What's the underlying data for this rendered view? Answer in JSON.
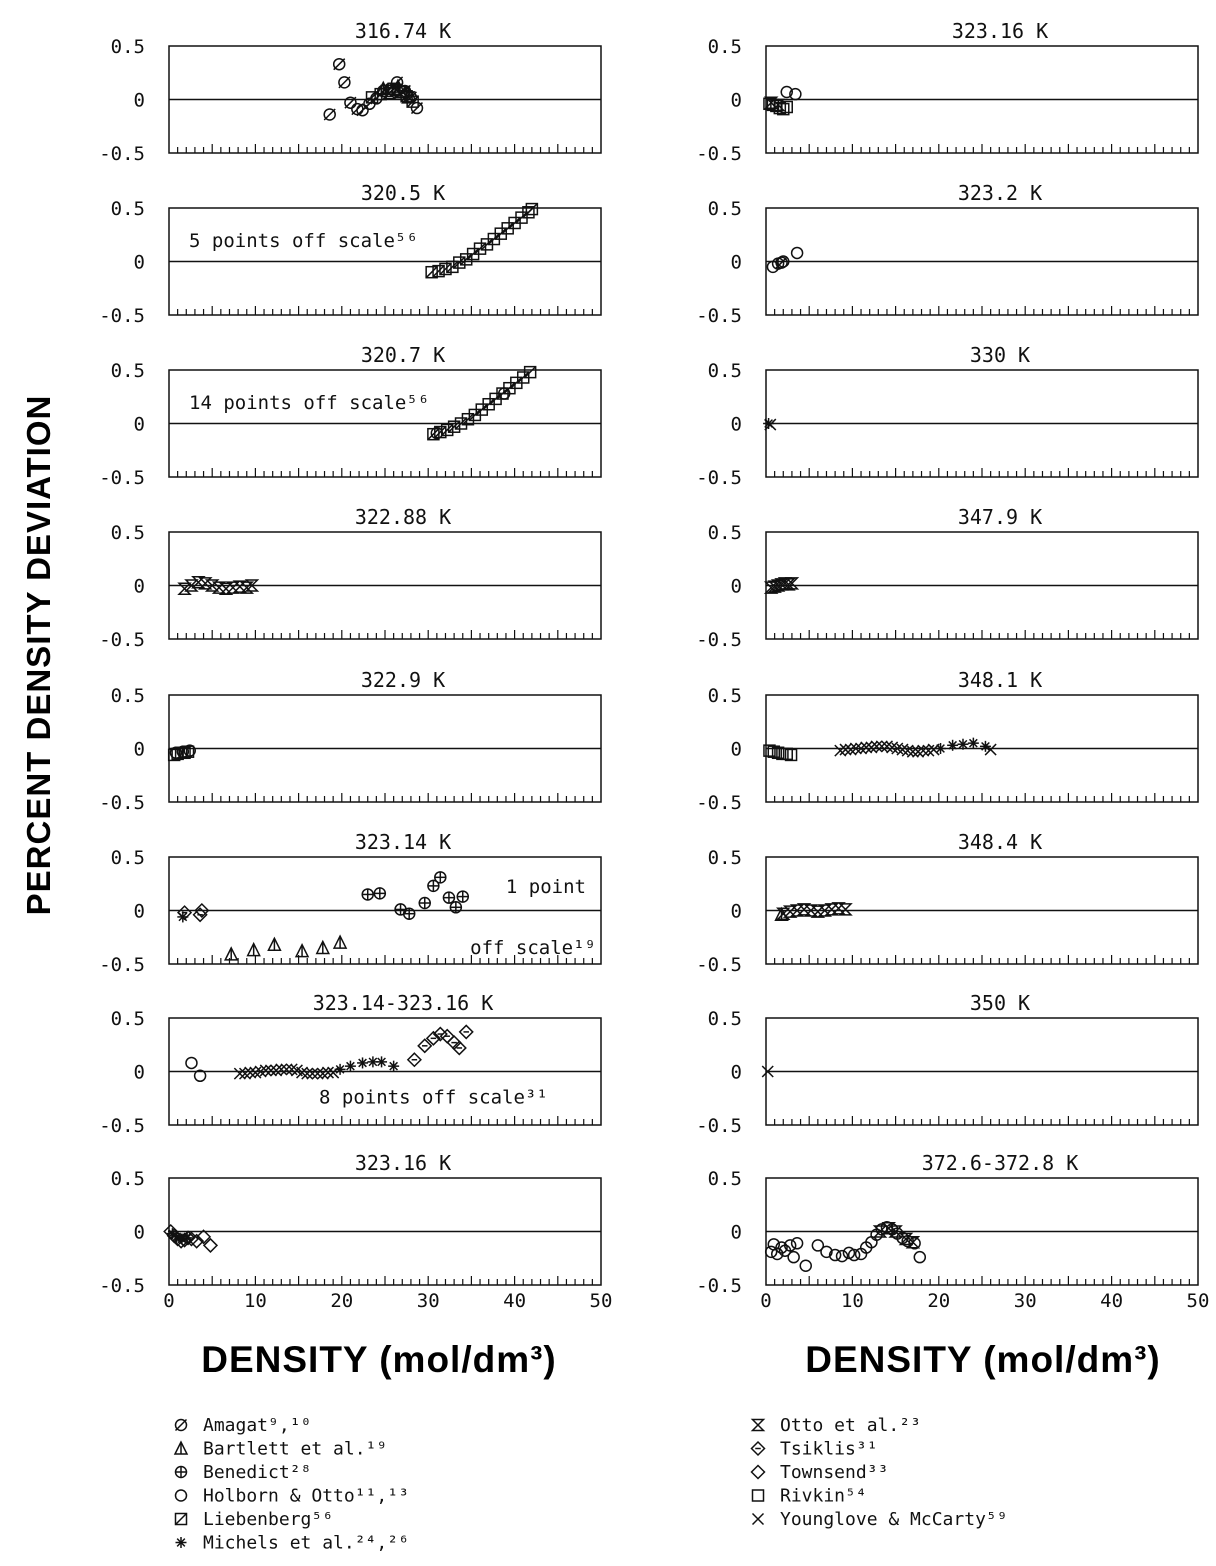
{
  "chart_data": {
    "type": "scatter",
    "ylabel": "PERCENT DENSITY DEVIATION",
    "xlabel": "DENSITY  (mol/dm³)",
    "xlim": [
      0,
      50
    ],
    "ylim": [
      -0.5,
      0.5
    ],
    "xticks": [
      "0",
      "10",
      "20",
      "30",
      "40",
      "50"
    ],
    "yticks": [
      "0.5",
      "0",
      "-0.5"
    ],
    "panels": [
      {
        "col": 0,
        "row": 0,
        "title": "316.74 K",
        "annotation": "",
        "points": [
          {
            "s": "amagat",
            "x": [
              18.6,
              19.7,
              20.3,
              21.0,
              21.8,
              22.4,
              23.2,
              24.0,
              24.8,
              25.6,
              26.4,
              27.3,
              28.0,
              28.7
            ],
            "y": [
              -0.14,
              0.33,
              0.16,
              -0.03,
              -0.09,
              -0.1,
              -0.04,
              0.01,
              0.08,
              0.1,
              0.16,
              0.08,
              0.02,
              -0.08
            ]
          },
          {
            "s": "liebenberg",
            "x": [
              23.5,
              24.5,
              25.2,
              26.0,
              26.8,
              27.5,
              28.2
            ],
            "y": [
              0.02,
              0.05,
              0.08,
              0.1,
              0.07,
              0.03,
              -0.02
            ]
          },
          {
            "s": "otto",
            "x": [
              25.5,
              26.3,
              27.0,
              27.7
            ],
            "y": [
              0.06,
              0.09,
              0.07,
              0.02
            ]
          },
          {
            "s": "bartlett",
            "x": [
              24.8,
              26.5,
              27.8
            ],
            "y": [
              0.1,
              0.12,
              0.05
            ]
          }
        ]
      },
      {
        "col": 0,
        "row": 1,
        "title": "320.5 K",
        "annotation": "5 points off scale⁵⁶",
        "points": [
          {
            "s": "liebenberg",
            "x": [
              30.4,
              31.2,
              32.0,
              32.8,
              33.6,
              34.4,
              35.2,
              36.0,
              36.8,
              37.6,
              38.4,
              39.2,
              40.0,
              40.8,
              41.6,
              42.0
            ],
            "y": [
              -0.1,
              -0.09,
              -0.07,
              -0.05,
              -0.01,
              0.02,
              0.07,
              0.12,
              0.16,
              0.21,
              0.26,
              0.31,
              0.36,
              0.41,
              0.46,
              0.49
            ]
          }
        ]
      },
      {
        "col": 0,
        "row": 2,
        "title": "320.7 K",
        "annotation": "14 points off scale⁵⁶",
        "points": [
          {
            "s": "liebenberg",
            "x": [
              30.6,
              31.4,
              32.2,
              33.0,
              33.8,
              34.6,
              35.4,
              36.2,
              37.0,
              37.8,
              38.6,
              39.4,
              40.2,
              41.0,
              41.8
            ],
            "y": [
              -0.1,
              -0.08,
              -0.06,
              -0.03,
              0.0,
              0.04,
              0.08,
              0.13,
              0.18,
              0.23,
              0.28,
              0.33,
              0.38,
              0.43,
              0.48
            ]
          },
          {
            "s": "holborn",
            "x": [
              31.0,
              38.8
            ],
            "y": [
              -0.09,
              0.28
            ]
          }
        ]
      },
      {
        "col": 0,
        "row": 3,
        "title": "322.88 K",
        "annotation": "",
        "points": [
          {
            "s": "otto",
            "x": [
              1.8,
              2.6,
              3.4,
              4.2,
              5.0,
              5.8,
              6.6,
              7.4,
              8.2,
              9.0,
              9.6
            ],
            "y": [
              -0.03,
              0.0,
              0.03,
              0.02,
              0.0,
              -0.02,
              -0.03,
              -0.02,
              -0.01,
              -0.02,
              0.0
            ]
          }
        ]
      },
      {
        "col": 0,
        "row": 4,
        "title": "322.9 K",
        "annotation": "",
        "points": [
          {
            "s": "rivkin",
            "x": [
              0.6,
              1.0,
              1.4,
              1.8,
              2.2
            ],
            "y": [
              -0.06,
              -0.05,
              -0.04,
              -0.04,
              -0.03
            ]
          },
          {
            "s": "holborn",
            "x": [
              0.8,
              1.6,
              2.4
            ],
            "y": [
              -0.04,
              -0.03,
              -0.02
            ]
          }
        ]
      },
      {
        "col": 0,
        "row": 5,
        "title": "323.14 K",
        "annotation": "1 point|off scale¹⁹",
        "points": [
          {
            "s": "michels",
            "x": [
              1.6
            ],
            "y": [
              -0.06
            ]
          },
          {
            "s": "tsiklis",
            "x": [
              1.8,
              3.6
            ],
            "y": [
              -0.02,
              -0.04
            ]
          },
          {
            "s": "townsend",
            "x": [
              3.8
            ],
            "y": [
              0.0
            ]
          },
          {
            "s": "bartlett",
            "x": [
              7.2,
              9.8,
              12.2,
              15.4,
              17.8,
              19.8
            ],
            "y": [
              -0.41,
              -0.37,
              -0.32,
              -0.38,
              -0.35,
              -0.3
            ]
          },
          {
            "s": "benedict",
            "x": [
              23.0,
              24.4,
              26.8,
              27.8,
              29.6,
              30.6,
              31.4,
              32.4,
              33.2,
              34.0
            ],
            "y": [
              0.15,
              0.16,
              0.01,
              -0.03,
              0.07,
              0.23,
              0.31,
              0.12,
              0.03,
              0.13
            ]
          }
        ]
      },
      {
        "col": 0,
        "row": 6,
        "title": "323.14-323.16 K",
        "annotation": "8 points off scale³¹",
        "points": [
          {
            "s": "holborn",
            "x": [
              2.6,
              3.6
            ],
            "y": [
              0.08,
              -0.04
            ]
          },
          {
            "s": "younglove",
            "x": [
              8.2,
              8.8,
              9.4,
              10.0,
              10.6,
              11.2,
              11.8,
              12.4,
              13.0,
              13.6,
              14.2,
              14.8,
              15.4,
              16.0,
              16.6,
              17.2,
              17.8,
              18.4,
              19.0
            ],
            "y": [
              -0.02,
              -0.02,
              -0.01,
              -0.01,
              0.0,
              0.01,
              0.01,
              0.01,
              0.02,
              0.02,
              0.02,
              0.01,
              -0.01,
              -0.02,
              -0.02,
              -0.02,
              -0.02,
              -0.01,
              -0.01
            ]
          },
          {
            "s": "michels",
            "x": [
              19.8,
              21.0,
              22.4,
              23.6,
              24.6,
              26.0
            ],
            "y": [
              0.02,
              0.05,
              0.08,
              0.09,
              0.09,
              0.05
            ]
          },
          {
            "s": "tsiklis",
            "x": [
              28.4,
              29.6,
              30.6,
              31.4,
              32.2,
              33.0,
              33.6,
              34.4
            ],
            "y": [
              0.11,
              0.24,
              0.31,
              0.35,
              0.33,
              0.27,
              0.22,
              0.37
            ]
          }
        ]
      },
      {
        "col": 0,
        "row": 7,
        "title": "323.16 K",
        "annotation": "",
        "points": [
          {
            "s": "tsiklis",
            "x": [
              0.2,
              0.6,
              1.0,
              1.4,
              1.8,
              2.2
            ],
            "y": [
              0.0,
              -0.04,
              -0.07,
              -0.09,
              -0.08,
              -0.06
            ]
          },
          {
            "s": "michels",
            "x": [
              0.4,
              0.9,
              1.5,
              2.1
            ],
            "y": [
              -0.02,
              -0.05,
              -0.07,
              -0.06
            ]
          },
          {
            "s": "townsend",
            "x": [
              2.6,
              3.2,
              4.0,
              4.8
            ],
            "y": [
              -0.07,
              -0.09,
              -0.05,
              -0.13
            ]
          }
        ]
      },
      {
        "col": 1,
        "row": 0,
        "title": "323.16 K",
        "annotation": "",
        "points": [
          {
            "s": "rivkin",
            "x": [
              0.4,
              0.8,
              1.2,
              1.6,
              2.0,
              2.4
            ],
            "y": [
              -0.04,
              -0.05,
              -0.06,
              -0.08,
              -0.09,
              -0.07
            ]
          },
          {
            "s": "holborn",
            "x": [
              2.4,
              3.4
            ],
            "y": [
              0.07,
              0.05
            ]
          },
          {
            "s": "otto",
            "x": [
              0.6,
              1.4
            ],
            "y": [
              -0.03,
              -0.05
            ]
          }
        ]
      },
      {
        "col": 1,
        "row": 1,
        "title": "323.2 K",
        "annotation": "",
        "points": [
          {
            "s": "holborn",
            "x": [
              0.8,
              1.4,
              2.0,
              3.6
            ],
            "y": [
              -0.05,
              -0.02,
              0.0,
              0.08
            ]
          },
          {
            "s": "amagat",
            "x": [
              1.8
            ],
            "y": [
              -0.01
            ]
          }
        ]
      },
      {
        "col": 1,
        "row": 2,
        "title": "330 K",
        "annotation": "",
        "points": [
          {
            "s": "michels",
            "x": [
              0.3
            ],
            "y": [
              0.0
            ]
          },
          {
            "s": "younglove",
            "x": [
              0.5
            ],
            "y": [
              -0.01
            ]
          }
        ]
      },
      {
        "col": 1,
        "row": 3,
        "title": "347.9 K",
        "annotation": "",
        "points": [
          {
            "s": "otto",
            "x": [
              0.6,
              1.0,
              1.4,
              1.8,
              2.2,
              2.6,
              3.0
            ],
            "y": [
              -0.02,
              -0.01,
              0.0,
              0.01,
              0.02,
              0.01,
              0.02
            ]
          }
        ]
      },
      {
        "col": 1,
        "row": 4,
        "title": "348.1 K",
        "annotation": "",
        "points": [
          {
            "s": "rivkin",
            "x": [
              0.4,
              0.9,
              1.4,
              1.9,
              2.4,
              2.9
            ],
            "y": [
              -0.02,
              -0.03,
              -0.04,
              -0.05,
              -0.05,
              -0.06
            ]
          },
          {
            "s": "younglove",
            "x": [
              8.6,
              9.2,
              9.8,
              10.4,
              11.0,
              11.6,
              12.2,
              12.8,
              13.4,
              14.0,
              14.6,
              15.2,
              15.8,
              16.4,
              17.0,
              17.6,
              18.2,
              18.8,
              19.4
            ],
            "y": [
              -0.02,
              -0.01,
              -0.01,
              0.0,
              0.0,
              0.01,
              0.01,
              0.02,
              0.02,
              0.02,
              0.01,
              0.0,
              -0.01,
              -0.02,
              -0.03,
              -0.03,
              -0.02,
              -0.02,
              -0.01
            ]
          },
          {
            "s": "michels",
            "x": [
              20.2,
              21.6,
              22.8,
              24.0,
              25.4
            ],
            "y": [
              0.0,
              0.03,
              0.04,
              0.05,
              0.02
            ]
          },
          {
            "s": "younglove",
            "x": [
              26.0
            ],
            "y": [
              -0.01
            ]
          }
        ]
      },
      {
        "col": 1,
        "row": 5,
        "title": "348.4 K",
        "annotation": "",
        "points": [
          {
            "s": "otto",
            "x": [
              2.0,
              2.8,
              3.6,
              4.4,
              5.2,
              6.0,
              6.8,
              7.6,
              8.4,
              9.2
            ],
            "y": [
              -0.03,
              -0.01,
              0.0,
              0.01,
              0.0,
              -0.01,
              0.0,
              0.01,
              0.02,
              0.01
            ]
          },
          {
            "s": "bartlett",
            "x": [
              1.8
            ],
            "y": [
              -0.04
            ]
          }
        ]
      },
      {
        "col": 1,
        "row": 6,
        "title": "350 K",
        "annotation": "",
        "points": [
          {
            "s": "younglove",
            "x": [
              0.2
            ],
            "y": [
              0.0
            ]
          }
        ]
      },
      {
        "col": 1,
        "row": 7,
        "title": "372.6-372.8 K",
        "annotation": "",
        "points": [
          {
            "s": "holborn",
            "x": [
              0.6,
              0.9,
              1.3,
              1.8,
              2.2,
              2.8,
              3.2,
              3.6,
              4.6,
              6.0,
              7.0,
              8.0,
              8.8,
              9.6,
              10.2,
              11.0,
              11.6,
              12.2,
              12.8,
              13.4,
              14.0,
              14.6,
              15.2,
              15.8,
              16.4,
              17.2,
              17.8
            ],
            "y": [
              -0.19,
              -0.12,
              -0.21,
              -0.15,
              -0.18,
              -0.13,
              -0.24,
              -0.11,
              -0.32,
              -0.13,
              -0.19,
              -0.22,
              -0.23,
              -0.2,
              -0.22,
              -0.21,
              -0.15,
              -0.1,
              -0.03,
              0.02,
              0.04,
              0.02,
              -0.02,
              -0.06,
              -0.09,
              -0.11,
              -0.24
            ]
          },
          {
            "s": "otto",
            "x": [
              13.2,
              14.2,
              15.0,
              16.2,
              17.0
            ],
            "y": [
              0.0,
              0.03,
              0.0,
              -0.07,
              -0.1
            ]
          }
        ]
      }
    ],
    "legend": [
      {
        "key": "amagat",
        "marker": "Ø",
        "label": "Amagat⁹,¹⁰"
      },
      {
        "key": "bartlett",
        "marker": "Δ",
        "label": "Bartlett et al.¹⁹"
      },
      {
        "key": "benedict",
        "marker": "⊕",
        "label": "Benedict²⁸"
      },
      {
        "key": "holborn",
        "marker": "○",
        "label": "Holborn & Otto¹¹,¹³"
      },
      {
        "key": "liebenberg",
        "marker": "▨",
        "label": "Liebenberg⁵⁶"
      },
      {
        "key": "michels",
        "marker": "✱",
        "label": "Michels et al.²⁴,²⁶"
      },
      {
        "key": "otto",
        "marker": "⧖",
        "label": "Otto et al.²³"
      },
      {
        "key": "tsiklis",
        "marker": "◈",
        "label": "Tsiklis³¹"
      },
      {
        "key": "townsend",
        "marker": "◇",
        "label": "Townsend³³"
      },
      {
        "key": "rivkin",
        "marker": "□",
        "label": "Rivkin⁵⁴"
      },
      {
        "key": "younglove",
        "marker": "×",
        "label": "Younglove & McCarty⁵⁹"
      }
    ]
  }
}
